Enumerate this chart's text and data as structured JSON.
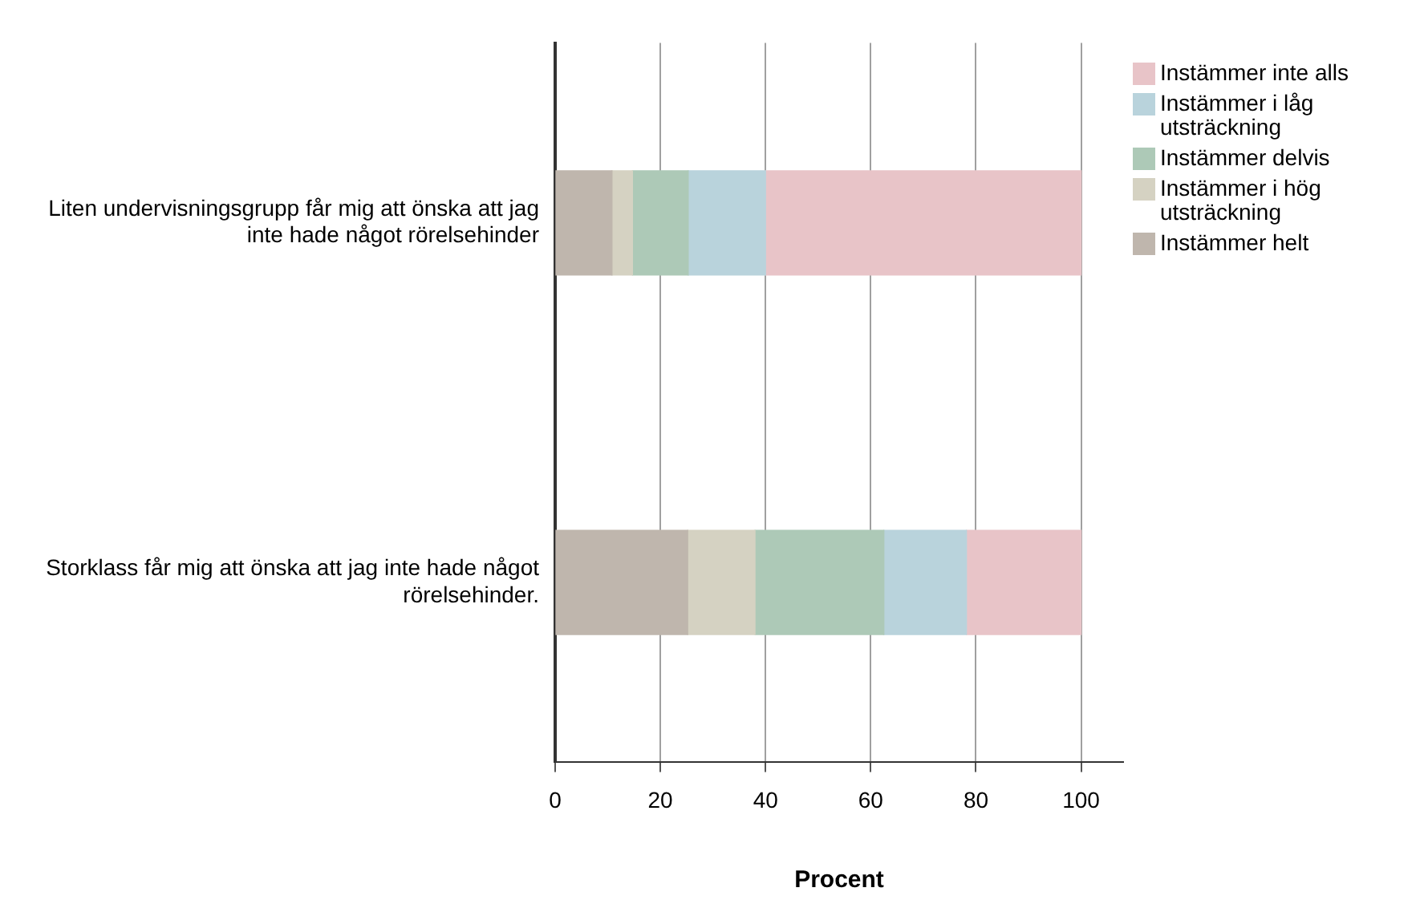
{
  "chart_data": {
    "type": "bar",
    "orientation": "horizontal",
    "stacked": true,
    "xlabel": "Procent",
    "categories": [
      "Liten undervisningsgrupp får mig att önska att jag inte hade något rörelsehinder",
      "Storklass får mig att önska att jag inte hade något rörelsehinder."
    ],
    "series": [
      {
        "name": "Instämmer helt",
        "color": "#bfb6ad",
        "values": [
          10.8,
          25.2
        ]
      },
      {
        "name": "Instämmer i hög utsträckning",
        "color": "#d5d2c2",
        "values": [
          3.9,
          12.8
        ]
      },
      {
        "name": "Instämmer delvis",
        "color": "#adc9b7",
        "values": [
          10.6,
          24.5
        ]
      },
      {
        "name": "Instämmer i låg utsträckning",
        "color": "#b9d3dc",
        "values": [
          14.7,
          15.7
        ]
      },
      {
        "name": "Instämmer inte alls",
        "color": "#e8c4c8",
        "values": [
          60.0,
          21.8
        ]
      }
    ],
    "xlim": [
      0,
      108
    ],
    "xticks": [
      0,
      20,
      40,
      60,
      80,
      100
    ],
    "grid": "x",
    "legend": "right"
  }
}
